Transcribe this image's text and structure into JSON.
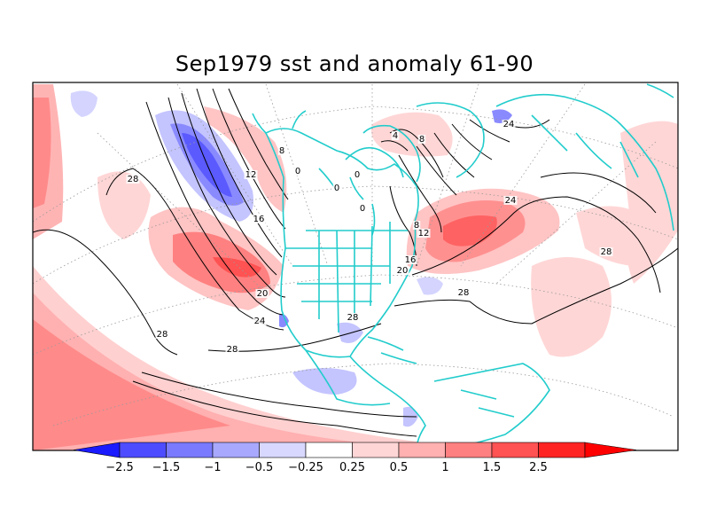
{
  "title": "Sep1979 sst and anomaly 61-90",
  "map": {
    "coastline_color": "#22cccc",
    "contour_labels": [
      {
        "text": "28"
      },
      {
        "text": "28"
      },
      {
        "text": "28"
      },
      {
        "text": "28"
      },
      {
        "text": "28"
      },
      {
        "text": "28"
      },
      {
        "text": "24"
      },
      {
        "text": "24"
      },
      {
        "text": "24"
      },
      {
        "text": "20"
      },
      {
        "text": "20"
      },
      {
        "text": "16"
      },
      {
        "text": "16"
      },
      {
        "text": "12"
      },
      {
        "text": "12"
      },
      {
        "text": "8"
      },
      {
        "text": "8"
      },
      {
        "text": "8"
      },
      {
        "text": "4"
      },
      {
        "text": "0"
      },
      {
        "text": "0"
      },
      {
        "text": "0"
      },
      {
        "text": "0"
      }
    ]
  },
  "colorbar": {
    "colors": [
      "#1a1aff",
      "#4d4dff",
      "#7a7aff",
      "#a8a8ff",
      "#d8d8ff",
      "#ffffff",
      "#ffd6d6",
      "#ffb0b0",
      "#ff8080",
      "#ff5252",
      "#ff2424",
      "#ff0000"
    ],
    "labels": [
      "-2.5",
      "-1.5",
      "-1",
      "-0.5",
      "-0.25",
      "0.25",
      "0.5",
      "1",
      "1.5",
      "2.5"
    ]
  }
}
